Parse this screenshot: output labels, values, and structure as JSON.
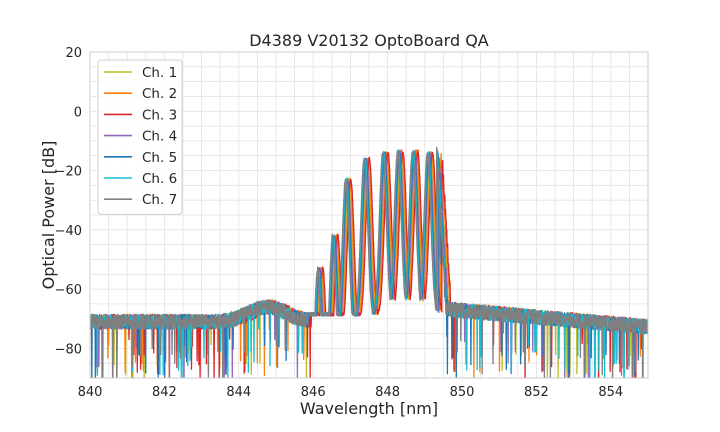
{
  "chart_data": {
    "type": "line",
    "title": "D4389 V20132 OptoBoard QA",
    "xlabel": "Wavelength [nm]",
    "ylabel": "Optical Power [dB]",
    "xlim": [
      840,
      855
    ],
    "ylim": [
      -90,
      20
    ],
    "xticks": [
      840,
      842,
      844,
      846,
      848,
      850,
      852,
      854
    ],
    "xtick_labels": [
      "840",
      "842",
      "844",
      "846",
      "848",
      "850",
      "852",
      "854"
    ],
    "yticks": [
      -80,
      -60,
      -40,
      -20,
      0,
      20
    ],
    "ytick_labels": [
      "−80",
      "−60",
      "−40",
      "−20",
      "0",
      "20"
    ],
    "grid": true,
    "legend_position": "upper-left",
    "series": [
      {
        "name": "Ch. 1",
        "color": "#bcbd22",
        "offset": 0.0
      },
      {
        "name": "Ch. 2",
        "color": "#ff7f0e",
        "offset": 0.03
      },
      {
        "name": "Ch. 3",
        "color": "#d62728",
        "offset": 0.06
      },
      {
        "name": "Ch. 4",
        "color": "#9467bd",
        "offset": -0.02
      },
      {
        "name": "Ch. 5",
        "color": "#1f77b4",
        "offset": -0.04
      },
      {
        "name": "Ch. 6",
        "color": "#17becf",
        "offset": -0.06
      },
      {
        "name": "Ch. 7",
        "color": "#7f7f7f",
        "offset": -0.08
      }
    ],
    "baseline_level_db": -71,
    "peaks": [
      {
        "x": 846.2,
        "y": -53
      },
      {
        "x": 846.6,
        "y": -42
      },
      {
        "x": 846.95,
        "y": -23
      },
      {
        "x": 847.45,
        "y": -16
      },
      {
        "x": 847.95,
        "y": -14
      },
      {
        "x": 848.35,
        "y": -13.5
      },
      {
        "x": 848.75,
        "y": -13.5
      },
      {
        "x": 849.15,
        "y": -14
      }
    ],
    "stopband_edges": [
      845.9,
      849.4
    ]
  }
}
